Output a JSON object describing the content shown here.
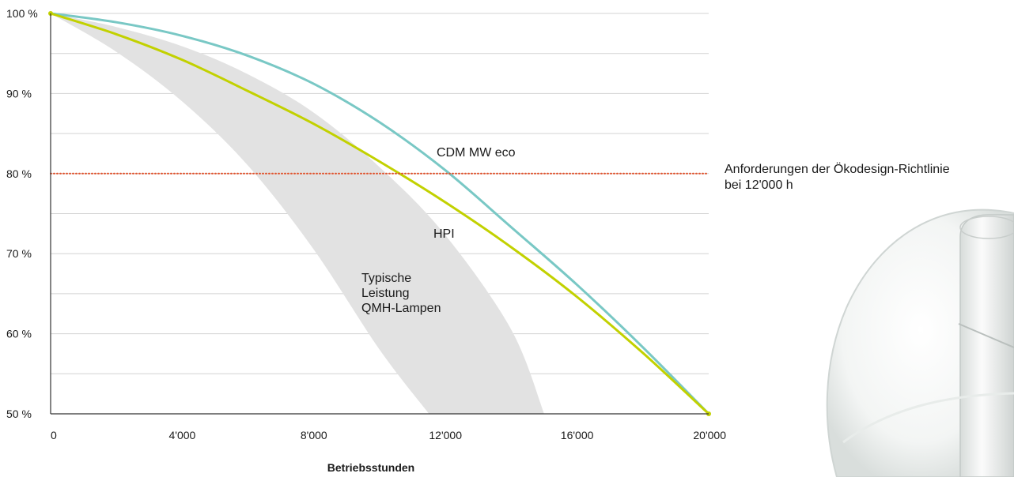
{
  "chart_data": {
    "type": "line",
    "title": "",
    "xlabel": "Betriebsstunden",
    "ylabel": "",
    "xlim": [
      0,
      20000
    ],
    "ylim": [
      50,
      100
    ],
    "x_ticks": [
      0,
      4000,
      8000,
      12000,
      16000,
      20000
    ],
    "x_tick_labels": [
      "0",
      "4'000",
      "8'000",
      "12'000",
      "16'000",
      "20'000"
    ],
    "y_ticks": [
      50,
      60,
      70,
      80,
      90,
      100
    ],
    "y_tick_labels": [
      "50 %",
      "60 %",
      "70 %",
      "80 %",
      "90 %",
      "100 %"
    ],
    "y_minor_gridlines": [
      55,
      65,
      75,
      85,
      95
    ],
    "grid": true,
    "series": [
      {
        "name": "CDM MW eco",
        "color": "#79c8c5",
        "x": [
          0,
          2000,
          4000,
          6000,
          8000,
          10000,
          12000,
          14000,
          16000,
          18000,
          20000
        ],
        "y": [
          100,
          98.9,
          97.2,
          94.7,
          91.2,
          86.4,
          80.4,
          73.3,
          66.1,
          58.3,
          50
        ]
      },
      {
        "name": "HPI",
        "color": "#c2d100",
        "x": [
          0,
          2000,
          4000,
          6000,
          8000,
          10000,
          12000,
          14000,
          16000,
          18000,
          20000
        ],
        "y": [
          100,
          97.4,
          94.2,
          90.3,
          86.2,
          81.5,
          76.4,
          70.8,
          64.6,
          57.6,
          50
        ]
      }
    ],
    "band": {
      "name": "Typische Leistung QMH-Lampen",
      "label_lines": [
        "Typische",
        "Leistung",
        "QMH-Lampen"
      ],
      "color": "#e2e2e2",
      "upper": {
        "x": [
          0,
          2000,
          4000,
          6000,
          8000,
          10000,
          12000,
          14000,
          15000
        ],
        "y": [
          100,
          98.3,
          95.9,
          92.4,
          87.6,
          80.8,
          72.3,
          60.5,
          50
        ]
      },
      "lower": {
        "x": [
          0,
          2000,
          4000,
          6000,
          8000,
          10000,
          11500
        ],
        "y": [
          100,
          95.2,
          89.0,
          81.0,
          70.5,
          58.0,
          50
        ]
      }
    },
    "reference_line": {
      "y": 80,
      "color": "#e0522c",
      "style": "dotted",
      "label": "Anforderungen der Ökodesign-Richtlinie bei 12'000 h",
      "label_lines": [
        "Anforderungen der Ökodesign-Richtlinie",
        "bei 12'000 h"
      ]
    },
    "legend": "none"
  }
}
